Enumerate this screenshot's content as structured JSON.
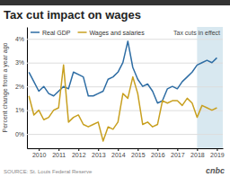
{
  "chart_data": {
    "type": "line",
    "title": "Tax cut impact on wages",
    "source": "SOURCE: St. Louis Federal Reserve",
    "logo": "cnbc",
    "ylabel": "Percent change from a year ago",
    "x": [
      2009.5,
      2009.75,
      2010.0,
      2010.25,
      2010.5,
      2010.75,
      2011.0,
      2011.25,
      2011.5,
      2011.75,
      2012.0,
      2012.25,
      2012.5,
      2012.75,
      2013.0,
      2013.25,
      2013.5,
      2013.75,
      2014.0,
      2014.25,
      2014.5,
      2014.75,
      2015.0,
      2015.25,
      2015.5,
      2015.75,
      2016.0,
      2016.25,
      2016.5,
      2016.75,
      2017.0,
      2017.25,
      2017.5,
      2017.75,
      2018.0,
      2018.25,
      2018.5,
      2018.75,
      2019.0
    ],
    "series": [
      {
        "name": "Real GDP",
        "color": "#2e6da4",
        "values": [
          2.6,
          2.2,
          1.8,
          2.0,
          1.7,
          1.6,
          1.8,
          2.0,
          1.9,
          2.6,
          2.5,
          2.4,
          1.6,
          1.6,
          1.7,
          1.8,
          2.3,
          2.4,
          2.6,
          3.0,
          3.9,
          2.8,
          2.3,
          2.0,
          2.1,
          1.8,
          1.3,
          1.4,
          1.9,
          2.0,
          1.9,
          2.2,
          2.4,
          2.6,
          2.9,
          3.0,
          3.1,
          3.0,
          3.2
        ]
      },
      {
        "name": "Wages and salaries",
        "color": "#c8a020",
        "values": [
          1.6,
          0.8,
          1.0,
          0.6,
          0.7,
          1.0,
          1.1,
          2.9,
          0.5,
          0.7,
          0.8,
          0.4,
          0.3,
          0.4,
          0.5,
          -0.3,
          0.3,
          0.2,
          0.5,
          1.7,
          1.5,
          2.4,
          1.7,
          0.4,
          0.5,
          0.3,
          0.4,
          1.4,
          1.3,
          1.4,
          1.4,
          1.2,
          1.5,
          1.3,
          0.7,
          1.2,
          1.1,
          1.0,
          1.1
        ]
      }
    ],
    "xlim": [
      2009.4,
      2019.3
    ],
    "xticks": [
      2010,
      2011,
      2012,
      2013,
      2014,
      2015,
      2016,
      2017,
      2018,
      2019
    ],
    "ylim": [
      -0.6,
      4.5
    ],
    "yticks": [
      {
        "value": 0,
        "label": "0%"
      },
      {
        "value": 1,
        "label": "1%"
      },
      {
        "value": 2,
        "label": "2%"
      },
      {
        "value": 3,
        "label": "3%"
      },
      {
        "value": 4,
        "label": "4%"
      }
    ],
    "grid": true,
    "legend": "top-left",
    "spans": [
      {
        "start": 2018.0,
        "label": "Tax cuts in effect",
        "color": "#d8e8f0"
      }
    ]
  }
}
